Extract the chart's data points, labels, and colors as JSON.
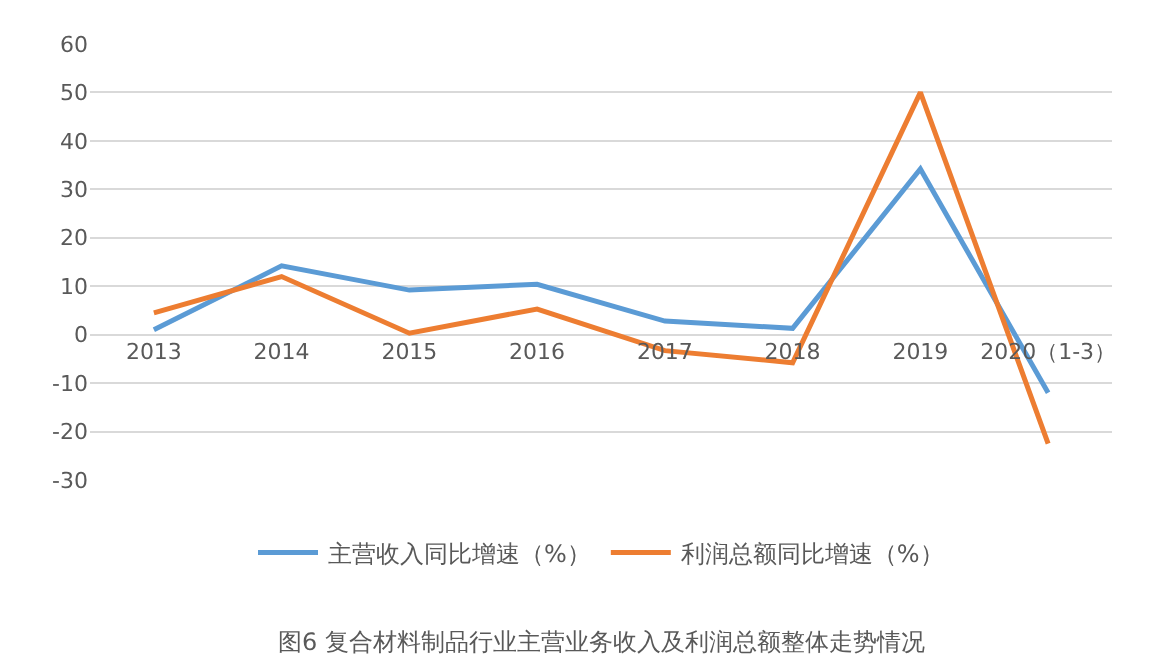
{
  "chart_data": {
    "type": "line",
    "categories": [
      "2013",
      "2014",
      "2015",
      "2016",
      "2017",
      "2018",
      "2019",
      "2020（1-3）"
    ],
    "series": [
      {
        "name": "主营收入同比增速（%）",
        "color": "#5b9bd5",
        "values": [
          1,
          14.2,
          9.2,
          10.4,
          2.8,
          1.3,
          34.2,
          -12
        ]
      },
      {
        "name": "利润总额同比增速（%）",
        "color": "#ed7d31",
        "values": [
          4.5,
          12,
          0.3,
          5.3,
          -3.3,
          -5.8,
          50,
          -22.5
        ]
      }
    ],
    "ylim": [
      -30,
      60
    ],
    "yticks": [
      -30,
      -20,
      -10,
      0,
      10,
      20,
      30,
      40,
      50,
      60
    ],
    "grid": "y",
    "legend": "bottom",
    "marker": "none",
    "line_style": "solid",
    "annotations": [
      "图6 复合材料制品行业主营业务收入及利润总额整体走势情况"
    ]
  }
}
